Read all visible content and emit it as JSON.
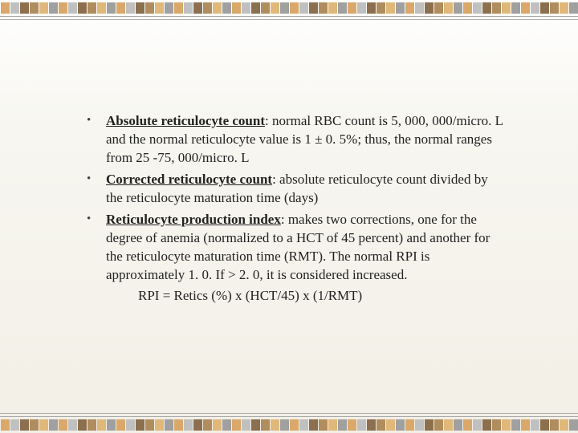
{
  "slide": {
    "background_gradient": [
      "#ffffff",
      "#f7f6f0",
      "#f2efe6"
    ],
    "font_family": "Times New Roman",
    "body_font_size_pt": 17,
    "text_color": "#222222",
    "bullet_color": "#444444",
    "border_stripe_colors": [
      "#d9a86a",
      "#c0c0c0",
      "#8b6f4e",
      "#b08d5e",
      "#e0b87a",
      "#a0a0a0",
      "#d9a86a",
      "#c0c0c0",
      "#8b6f4e",
      "#b08d5e",
      "#e0b87a",
      "#a0a0a0",
      "#d9a86a",
      "#c0c0c0",
      "#8b6f4e",
      "#b08d5e",
      "#e0b87a",
      "#a0a0a0",
      "#d9a86a",
      "#c0c0c0",
      "#8b6f4e",
      "#b08d5e",
      "#e0b87a",
      "#a0a0a0",
      "#d9a86a",
      "#c0c0c0",
      "#8b6f4e",
      "#b08d5e",
      "#e0b87a",
      "#a0a0a0",
      "#d9a86a",
      "#c0c0c0",
      "#8b6f4e",
      "#b08d5e",
      "#e0b87a",
      "#a0a0a0",
      "#d9a86a",
      "#c0c0c0",
      "#8b6f4e",
      "#b08d5e",
      "#e0b87a",
      "#a0a0a0",
      "#d9a86a",
      "#c0c0c0",
      "#8b6f4e",
      "#b08d5e",
      "#e0b87a",
      "#a0a0a0",
      "#d9a86a",
      "#c0c0c0",
      "#8b6f4e",
      "#b08d5e",
      "#e0b87a",
      "#a0a0a0",
      "#d9a86a",
      "#c0c0c0",
      "#8b6f4e",
      "#b08d5e",
      "#e0b87a",
      "#a0a0a0"
    ],
    "rule_color": "#aaaaaa"
  },
  "bullets": [
    {
      "term": "Absolute reticulocyte count",
      "rest": ":   normal RBC count is 5, 000, 000/micro. L and the normal reticulocyte value is 1 ± 0. 5%; thus, the normal ranges from  25 -75, 000/micro. L"
    },
    {
      "term": "Corrected reticulocyte count",
      "rest": ":  absolute reticulocyte count divided by the reticulocyte maturation time (days)"
    },
    {
      "term": "Reticulocyte production index",
      "rest": ":  makes two corrections, one for the degree of anemia (normalized to a HCT of 45 percent) and another for the reticulocyte maturation time (RMT).  The normal RPI is approximately 1. 0.  If > 2. 0, it is considered increased."
    }
  ],
  "formula": "RPI  =  Retics (%)  x  (HCT/45)  x  (1/RMT)"
}
